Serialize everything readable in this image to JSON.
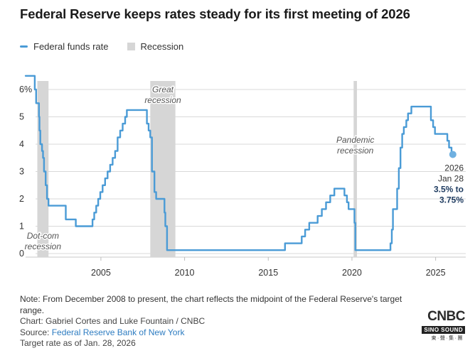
{
  "title": "Federal Reserve keeps rates steady for its first meeting of 2026",
  "legend": {
    "rate_label": "Federal funds rate",
    "recession_label": "Recession"
  },
  "colors": {
    "line": "#4a9bd6",
    "recession": "#d6d6d6",
    "grid": "#d9d9d9",
    "endpoint": "#6fb0e0"
  },
  "chart_data": {
    "type": "line",
    "ylim": [
      0,
      6.5
    ],
    "xlim": [
      2000.5,
      2026.8
    ],
    "y_ticks": [
      {
        "value": 0,
        "label": "0"
      },
      {
        "value": 1,
        "label": "1"
      },
      {
        "value": 2,
        "label": "2"
      },
      {
        "value": 3,
        "label": "3"
      },
      {
        "value": 4,
        "label": "4"
      },
      {
        "value": 5,
        "label": "5"
      },
      {
        "value": 6,
        "label": "6%"
      }
    ],
    "x_ticks": [
      {
        "value": 2005,
        "label": "2005"
      },
      {
        "value": 2010,
        "label": "2010"
      },
      {
        "value": 2015,
        "label": "2015"
      },
      {
        "value": 2020,
        "label": "2020"
      },
      {
        "value": 2025,
        "label": "2025"
      }
    ],
    "recessions": [
      {
        "start": 2001.2,
        "end": 2001.87,
        "label_lines": [
          "Dot-com",
          "recession"
        ],
        "label_pos": "bottom"
      },
      {
        "start": 2007.95,
        "end": 2009.45,
        "label_lines": [
          "Great",
          "recession"
        ],
        "label_pos": "top"
      },
      {
        "start": 2020.1,
        "end": 2020.3,
        "label_lines": [
          "Pandemic",
          "recession"
        ],
        "label_pos": "middle"
      }
    ],
    "series": [
      {
        "name": "Federal funds rate",
        "points": [
          [
            2000.5,
            6.5
          ],
          [
            2001.0,
            6.5
          ],
          [
            2001.05,
            6.0
          ],
          [
            2001.13,
            5.5
          ],
          [
            2001.3,
            5.0
          ],
          [
            2001.33,
            4.5
          ],
          [
            2001.38,
            4.0
          ],
          [
            2001.48,
            3.75
          ],
          [
            2001.54,
            3.5
          ],
          [
            2001.6,
            3.0
          ],
          [
            2001.7,
            2.5
          ],
          [
            2001.78,
            2.0
          ],
          [
            2001.87,
            1.75
          ],
          [
            2002.85,
            1.75
          ],
          [
            2002.9,
            1.25
          ],
          [
            2003.5,
            1.0
          ],
          [
            2004.5,
            1.25
          ],
          [
            2004.6,
            1.5
          ],
          [
            2004.72,
            1.75
          ],
          [
            2004.84,
            2.0
          ],
          [
            2004.96,
            2.25
          ],
          [
            2005.1,
            2.5
          ],
          [
            2005.25,
            2.75
          ],
          [
            2005.4,
            3.0
          ],
          [
            2005.55,
            3.25
          ],
          [
            2005.7,
            3.5
          ],
          [
            2005.85,
            3.75
          ],
          [
            2006.0,
            4.25
          ],
          [
            2006.15,
            4.5
          ],
          [
            2006.3,
            4.75
          ],
          [
            2006.45,
            5.0
          ],
          [
            2006.55,
            5.25
          ],
          [
            2007.7,
            5.25
          ],
          [
            2007.75,
            4.75
          ],
          [
            2007.85,
            4.5
          ],
          [
            2007.95,
            4.25
          ],
          [
            2008.05,
            3.0
          ],
          [
            2008.2,
            2.25
          ],
          [
            2008.3,
            2.0
          ],
          [
            2008.8,
            1.5
          ],
          [
            2008.85,
            1.0
          ],
          [
            2008.95,
            0.125
          ],
          [
            2015.95,
            0.125
          ],
          [
            2016.0,
            0.375
          ],
          [
            2016.95,
            0.375
          ],
          [
            2017.0,
            0.625
          ],
          [
            2017.2,
            0.875
          ],
          [
            2017.45,
            1.125
          ],
          [
            2017.95,
            1.375
          ],
          [
            2018.2,
            1.625
          ],
          [
            2018.45,
            1.875
          ],
          [
            2018.7,
            2.125
          ],
          [
            2018.95,
            2.375
          ],
          [
            2019.55,
            2.125
          ],
          [
            2019.7,
            1.875
          ],
          [
            2019.8,
            1.625
          ],
          [
            2020.15,
            1.125
          ],
          [
            2020.2,
            0.125
          ],
          [
            2022.2,
            0.125
          ],
          [
            2022.3,
            0.375
          ],
          [
            2022.38,
            0.875
          ],
          [
            2022.45,
            1.625
          ],
          [
            2022.7,
            2.375
          ],
          [
            2022.8,
            3.125
          ],
          [
            2022.9,
            3.875
          ],
          [
            2023.0,
            4.375
          ],
          [
            2023.1,
            4.625
          ],
          [
            2023.25,
            4.875
          ],
          [
            2023.35,
            5.125
          ],
          [
            2023.55,
            5.375
          ],
          [
            2024.7,
            5.375
          ],
          [
            2024.72,
            4.875
          ],
          [
            2024.85,
            4.625
          ],
          [
            2024.96,
            4.375
          ],
          [
            2025.7,
            4.125
          ],
          [
            2025.8,
            3.875
          ],
          [
            2025.95,
            3.625
          ],
          [
            2026.07,
            3.625
          ]
        ]
      }
    ],
    "endpoint_annotation": {
      "year": "2026",
      "date": "Jan 28",
      "range_line1": "3.5% to",
      "range_line2": "3.75%"
    }
  },
  "footer": {
    "note": "Note: From December 2008 to present, the chart reflects the midpoint of the Federal Reserve's target range.",
    "credit": "Chart: Gabriel Cortes and Luke Fountain / CNBC",
    "source_prefix": "Source: ",
    "source_link": "Federal Reserve Bank of New York",
    "asof": "Target rate as of Jan. 28, 2026"
  },
  "logo": {
    "brand": "CNBC",
    "watermark": "SINO SOUND",
    "watermark_sub": "東·聲·集·團"
  }
}
